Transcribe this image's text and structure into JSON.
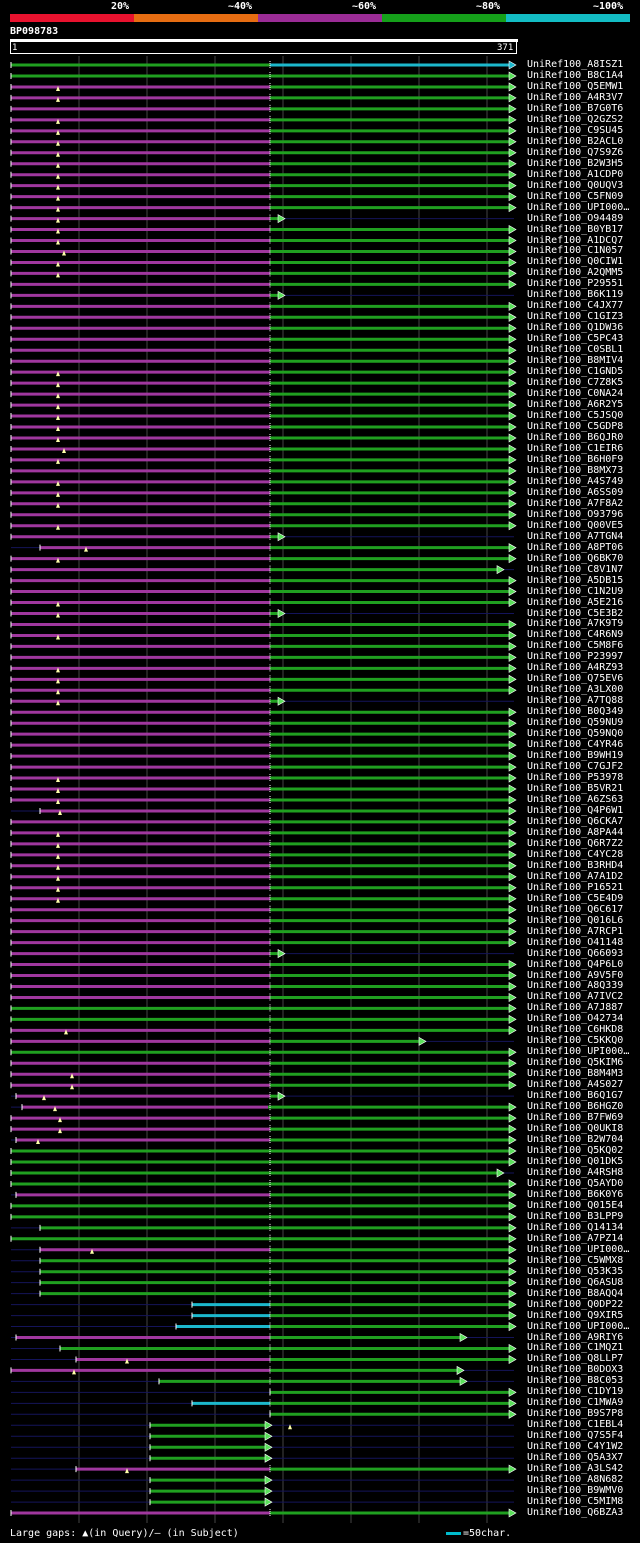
{
  "legend": [
    {
      "label": "20%",
      "color": "#e8122e"
    },
    {
      "label": "~40%",
      "color": "#e66d12"
    },
    {
      "label": "~60%",
      "color": "#9b2c96"
    },
    {
      "label": "~80%",
      "color": "#15a01a"
    },
    {
      "label": "~100%",
      "color": "#13bcc4"
    }
  ],
  "query": {
    "name": "BP098783",
    "start": "1",
    "end": "371"
  },
  "colors": {
    "magenta": "#a0379e",
    "green": "#20a020",
    "cyan": "#1cb8cc",
    "gap": "#14145a",
    "arrowFill": "#5be05b",
    "grid": "#444"
  },
  "hits": [
    "UniRef100_A8ISZ1",
    "UniRef100_B8C1A4",
    "UniRef100_Q5EMW1",
    "UniRef100_A4R3V7",
    "UniRef100_B7G0T6",
    "UniRef100_Q2GZS2",
    "UniRef100_C9SU45",
    "UniRef100_B2ACL0",
    "UniRef100_Q7S9Z6",
    "UniRef100_B2W3H5",
    "UniRef100_A1CDP0",
    "UniRef100_Q0UQV3",
    "UniRef100_C5FN09",
    "UniRef100_UPI000…",
    "UniRef100_O94489",
    "UniRef100_B0YB17",
    "UniRef100_A1DCQ7",
    "UniRef100_C1N057",
    "UniRef100_Q0CIW1",
    "UniRef100_A2QMM5",
    "UniRef100_P29551",
    "UniRef100_B6K119",
    "UniRef100_C4JX77",
    "UniRef100_C1GIZ3",
    "UniRef100_Q1DW36",
    "UniRef100_C5PC43",
    "UniRef100_C0SBL1",
    "UniRef100_B8MIV4",
    "UniRef100_C1GND5",
    "UniRef100_C7Z8K5",
    "UniRef100_C0NA24",
    "UniRef100_A6R2Y5",
    "UniRef100_C5JSQ0",
    "UniRef100_C5GDP8",
    "UniRef100_B6QJR0",
    "UniRef100_C1EIR6",
    "UniRef100_B6H0F9",
    "UniRef100_B8MX73",
    "UniRef100_A4S749",
    "UniRef100_A6SS09",
    "UniRef100_A7F8A2",
    "UniRef100_O93796",
    "UniRef100_Q00VE5",
    "UniRef100_A7TGN4",
    "UniRef100_A8PT06",
    "UniRef100_Q6BK70",
    "UniRef100_C8V1N7",
    "UniRef100_A5DB15",
    "UniRef100_C1N2U9",
    "UniRef100_A5E216",
    "UniRef100_C5E3B2",
    "UniRef100_A7K9T9",
    "UniRef100_C4R6N9",
    "UniRef100_C5M8F6",
    "UniRef100_P23997",
    "UniRef100_A4RZ93",
    "UniRef100_Q75EV6",
    "UniRef100_A3LX00",
    "UniRef100_A7TQ88",
    "UniRef100_B0Q349",
    "UniRef100_Q59NU9",
    "UniRef100_Q59NQ0",
    "UniRef100_C4YR46",
    "UniRef100_B9WH19",
    "UniRef100_C7GJF2",
    "UniRef100_P53978",
    "UniRef100_B5VR21",
    "UniRef100_A6ZS63",
    "UniRef100_Q4P6W1",
    "UniRef100_Q6CKA7",
    "UniRef100_A8PA44",
    "UniRef100_Q6R7Z2",
    "UniRef100_C4YC28",
    "UniRef100_B3RHD4",
    "UniRef100_A7A1D2",
    "UniRef100_P16521",
    "UniRef100_C5E4D9",
    "UniRef100_Q6C617",
    "UniRef100_Q016L6",
    "UniRef100_A7RCP1",
    "UniRef100_O41148",
    "UniRef100_Q66093",
    "UniRef100_Q4P6L0",
    "UniRef100_A9V5F0",
    "UniRef100_A8Q339",
    "UniRef100_A7IVC2",
    "UniRef100_A7J887",
    "UniRef100_O42734",
    "UniRef100_C6HKD8",
    "UniRef100_C5KKQ0",
    "UniRef100_UPI000…",
    "UniRef100_Q5KIM6",
    "UniRef100_B8M4M3",
    "UniRef100_A4S027",
    "UniRef100_B6Q1G7",
    "UniRef100_B6HGZ0",
    "UniRef100_B7FW69",
    "UniRef100_Q0UKI8",
    "UniRef100_B2W704",
    "UniRef100_Q5KQ02",
    "UniRef100_Q01DK5",
    "UniRef100_A4RSH8",
    "UniRef100_Q5AYD0",
    "UniRef100_B6K0Y6",
    "UniRef100_Q015E4",
    "UniRef100_B3LPP9",
    "UniRef100_Q14134",
    "UniRef100_A7PZ14",
    "UniRef100_UPI000…",
    "UniRef100_C5WMX8",
    "UniRef100_Q53K35",
    "UniRef100_Q6ASU8",
    "UniRef100_B8AQQ4",
    "UniRef100_Q0DP22",
    "UniRef100_Q9XIR5",
    "UniRef100_UPI000…",
    "UniRef100_A9RIY6",
    "UniRef100_C1MQZ1",
    "UniRef100_Q8LLP7",
    "UniRef100_B0DOX3",
    "UniRef100_B8C053",
    "UniRef100_C1DY19",
    "UniRef100_C1MWA9",
    "UniRef100_B9S7P8",
    "UniRef100_C1EBL4",
    "UniRef100_Q7S5F4",
    "UniRef100_C4Y1W2",
    "UniRef100_Q5A3X7",
    "UniRef100_A3LS42",
    "UniRef100_A8N682",
    "UniRef100_B9WMV0",
    "UniRef100_C5MIM8",
    "UniRef100_Q6BZA3"
  ],
  "footer": "Large gaps: ▲(in Query)/– (in Subject)",
  "scale_label": "=50char."
}
